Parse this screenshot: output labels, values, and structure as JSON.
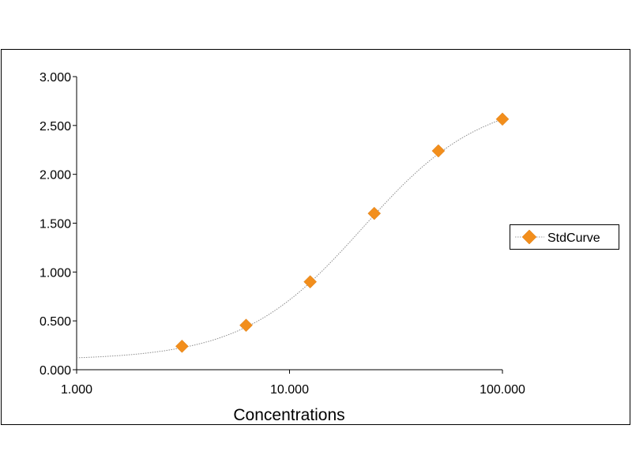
{
  "chart_data": {
    "type": "scatter",
    "title": "",
    "xlabel": "Concentrations",
    "ylabel": "",
    "x_scale": "log",
    "xlim": [
      1,
      100
    ],
    "ylim": [
      0,
      3
    ],
    "x_ticks": [
      1,
      10,
      100
    ],
    "x_tick_labels": [
      "1.000",
      "10.000",
      "100.000"
    ],
    "y_ticks": [
      0,
      0.5,
      1,
      1.5,
      2,
      2.5,
      3
    ],
    "y_tick_labels": [
      "0.000",
      "0.500",
      "1.000",
      "1.500",
      "2.000",
      "2.500",
      "3.000"
    ],
    "grid": false,
    "legend_position": "right",
    "series": [
      {
        "name": "StdCurve",
        "color": "#F28E1C",
        "marker": "diamond",
        "trendline": "dotted smooth fit",
        "x": [
          3.125,
          6.25,
          12.5,
          25,
          50,
          100
        ],
        "y": [
          0.24,
          0.455,
          0.9,
          1.6,
          2.24,
          2.565
        ]
      }
    ]
  }
}
